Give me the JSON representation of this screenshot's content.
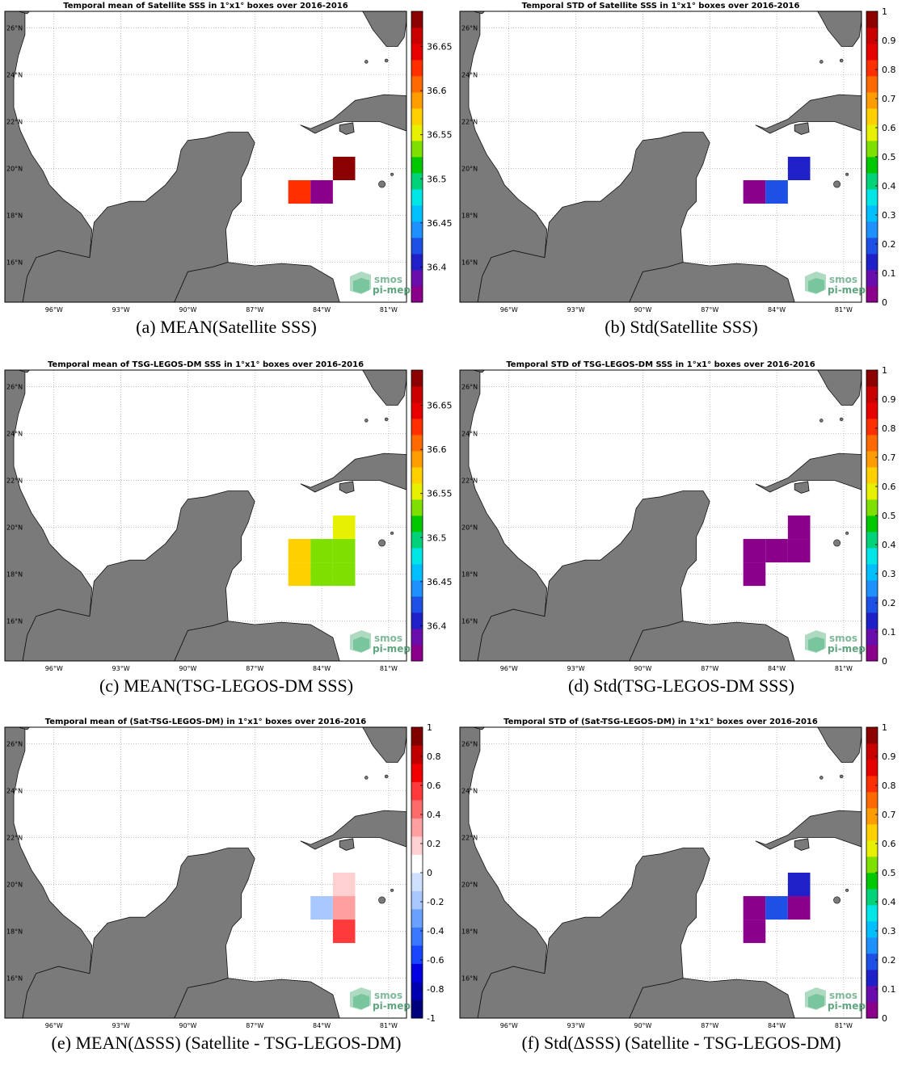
{
  "logo": {
    "line1": "smos",
    "line2": "pi-mep"
  },
  "lon_labels": [
    "96°W",
    "93°W",
    "90°W",
    "87°W",
    "84°W",
    "81°W"
  ],
  "lat_labels": [
    "26°N",
    "24°N",
    "22°N",
    "20°N",
    "18°N",
    "16°N"
  ],
  "colors": {
    "land": "#7a7a7a",
    "sss_scale": [
      "#8b008b",
      "#6a0dad",
      "#2020c8",
      "#1e50e6",
      "#1e90ff",
      "#00bfff",
      "#00e5e5",
      "#00d27a",
      "#00c800",
      "#7fe000",
      "#e6f000",
      "#ffd000",
      "#ff9c00",
      "#ff6a00",
      "#ff3000",
      "#e60000",
      "#c80000",
      "#8b0000"
    ],
    "diff_scale": [
      "#00007f",
      "#0000b0",
      "#0000e0",
      "#1846ff",
      "#3a78ff",
      "#6aa0ff",
      "#a8c8ff",
      "#cfe0ff",
      "#ffffff",
      "#ffd0d0",
      "#ffa0a0",
      "#ff6a6a",
      "#ff3a3a",
      "#f00000",
      "#c00000",
      "#800000"
    ]
  },
  "panels": [
    {
      "title": "Temporal mean of Satellite SSS in 1°x1° boxes over 2016-2016",
      "caption": "(a) MEAN(Satellite SSS)",
      "scale": "sss",
      "colorbar": {
        "ticks": [
          "36.65",
          "36.6",
          "36.55",
          "36.5",
          "36.45",
          "36.4"
        ],
        "tick_values": [
          36.65,
          36.6,
          36.55,
          36.5,
          36.45,
          36.4
        ],
        "range": [
          36.36,
          36.69
        ]
      },
      "cells": [
        {
          "lon_min": -85.5,
          "lat_min": 18.5,
          "value": 36.62
        },
        {
          "lon_min": -84.5,
          "lat_min": 18.5,
          "value": 36.37
        },
        {
          "lon_min": -83.5,
          "lat_min": 19.5,
          "value": 36.68
        }
      ]
    },
    {
      "title": "Temporal STD of Satellite SSS in 1°x1° boxes over 2016-2016",
      "caption": "(b) Std(Satellite SSS)",
      "scale": "sss",
      "colorbar": {
        "ticks": [
          "1",
          "0.9",
          "0.8",
          "0.7",
          "0.6",
          "0.5",
          "0.4",
          "0.3",
          "0.2",
          "0.1",
          "0"
        ],
        "tick_values": [
          1,
          0.9,
          0.8,
          0.7,
          0.6,
          0.5,
          0.4,
          0.3,
          0.2,
          0.1,
          0
        ],
        "range": [
          0,
          1
        ]
      },
      "cells": [
        {
          "lon_min": -85.5,
          "lat_min": 18.5,
          "value": 0.02
        },
        {
          "lon_min": -84.5,
          "lat_min": 18.5,
          "value": 0.2
        },
        {
          "lon_min": -83.5,
          "lat_min": 19.5,
          "value": 0.12
        }
      ]
    },
    {
      "title": "Temporal mean of TSG-LEGOS-DM SSS in 1°x1° boxes over 2016-2016",
      "caption": "(c) MEAN(TSG-LEGOS-DM SSS)",
      "scale": "sss",
      "colorbar": {
        "ticks": [
          "36.65",
          "36.6",
          "36.55",
          "36.5",
          "36.45",
          "36.4"
        ],
        "tick_values": [
          36.65,
          36.6,
          36.55,
          36.5,
          36.45,
          36.4
        ],
        "range": [
          36.36,
          36.69
        ]
      },
      "cells": [
        {
          "lon_min": -85.5,
          "lat_min": 18.5,
          "value": 36.57
        },
        {
          "lon_min": -85.5,
          "lat_min": 17.5,
          "value": 36.57
        },
        {
          "lon_min": -84.5,
          "lat_min": 18.5,
          "value": 36.54
        },
        {
          "lon_min": -84.5,
          "lat_min": 17.5,
          "value": 36.54
        },
        {
          "lon_min": -83.5,
          "lat_min": 18.5,
          "value": 36.53
        },
        {
          "lon_min": -83.5,
          "lat_min": 19.5,
          "value": 36.55
        },
        {
          "lon_min": -83.5,
          "lat_min": 17.5,
          "value": 36.53
        }
      ]
    },
    {
      "title": "Temporal STD of TSG-LEGOS-DM SSS in 1°x1° boxes over 2016-2016",
      "caption": "(d) Std(TSG-LEGOS-DM SSS)",
      "scale": "sss",
      "colorbar": {
        "ticks": [
          "1",
          "0.9",
          "0.8",
          "0.7",
          "0.6",
          "0.5",
          "0.4",
          "0.3",
          "0.2",
          "0.1",
          "0"
        ],
        "tick_values": [
          1,
          0.9,
          0.8,
          0.7,
          0.6,
          0.5,
          0.4,
          0.3,
          0.2,
          0.1,
          0
        ],
        "range": [
          0,
          1
        ]
      },
      "cells": [
        {
          "lon_min": -85.5,
          "lat_min": 18.5,
          "value": 0.01
        },
        {
          "lon_min": -85.5,
          "lat_min": 17.5,
          "value": 0.01
        },
        {
          "lon_min": -84.5,
          "lat_min": 18.5,
          "value": 0.01
        },
        {
          "lon_min": -83.5,
          "lat_min": 18.5,
          "value": 0.01
        },
        {
          "lon_min": -83.5,
          "lat_min": 19.5,
          "value": 0.01
        }
      ]
    },
    {
      "title": "Temporal mean of (Sat-TSG-LEGOS-DM) in 1°x1° boxes over 2016-2016",
      "caption": "(e) MEAN(ΔSSS) (Satellite - TSG-LEGOS-DM)",
      "scale": "diff",
      "colorbar": {
        "ticks": [
          "1",
          "0.8",
          "0.6",
          "0.4",
          "0.2",
          "0",
          "-0.2",
          "-0.4",
          "-0.6",
          "-0.8",
          "-1"
        ],
        "tick_values": [
          1,
          0.8,
          0.6,
          0.4,
          0.2,
          0,
          -0.2,
          -0.4,
          -0.6,
          -0.8,
          -1
        ],
        "range": [
          -1,
          1
        ]
      },
      "cells": [
        {
          "lon_min": -84.5,
          "lat_min": 18.5,
          "value": -0.15
        },
        {
          "lon_min": -83.5,
          "lat_min": 19.5,
          "value": 0.15
        },
        {
          "lon_min": -83.5,
          "lat_min": 18.5,
          "value": 0.35
        },
        {
          "lon_min": -83.5,
          "lat_min": 17.5,
          "value": 0.6
        }
      ]
    },
    {
      "title": "Temporal STD of (Sat-TSG-LEGOS-DM) in 1°x1° boxes over 2016-2016",
      "caption": "(f) Std(ΔSSS) (Satellite - TSG-LEGOS-DM)",
      "scale": "sss",
      "colorbar": {
        "ticks": [
          "1",
          "0.9",
          "0.8",
          "0.7",
          "0.6",
          "0.5",
          "0.4",
          "0.3",
          "0.2",
          "0.1",
          "0"
        ],
        "tick_values": [
          1,
          0.9,
          0.8,
          0.7,
          0.6,
          0.5,
          0.4,
          0.3,
          0.2,
          0.1,
          0
        ],
        "range": [
          0,
          1
        ]
      },
      "cells": [
        {
          "lon_min": -85.5,
          "lat_min": 18.5,
          "value": 0.02
        },
        {
          "lon_min": -85.5,
          "lat_min": 17.5,
          "value": 0.02
        },
        {
          "lon_min": -84.5,
          "lat_min": 18.5,
          "value": 0.2
        },
        {
          "lon_min": -83.5,
          "lat_min": 19.5,
          "value": 0.12
        },
        {
          "lon_min": -83.5,
          "lat_min": 18.5,
          "value": 0.04
        }
      ]
    }
  ]
}
